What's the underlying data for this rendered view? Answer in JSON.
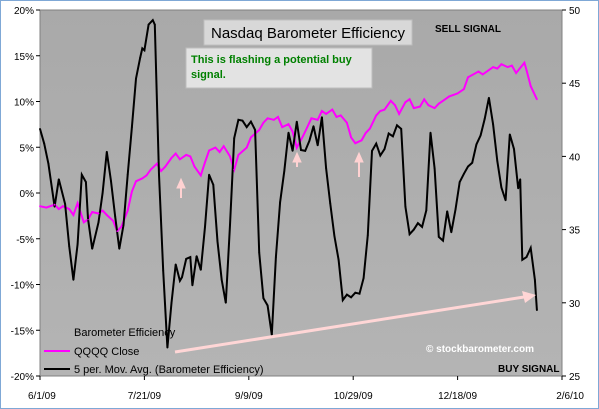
{
  "chart_data": {
    "type": "line",
    "title": "Nasdaq Barometer Efficiency",
    "annotations": {
      "note": "This is flashing a potential buy signal.",
      "sell_signal": "SELL SIGNAL",
      "buy_signal": "BUY SIGNAL",
      "watermark": "© stockbarometer.com"
    },
    "x_tick_labels": [
      "6/1/09",
      "7/21/09",
      "9/9/09",
      "10/29/09",
      "12/18/09",
      "2/6/10"
    ],
    "x_range": [
      "2009-06-01",
      "2010-02-06"
    ],
    "left_axis": {
      "ylim": [
        -20,
        20
      ],
      "ticks": [
        "20%",
        "15%",
        "10%",
        "5%",
        "0%",
        "-5%",
        "-10%",
        "-15%",
        "-20%"
      ]
    },
    "right_axis": {
      "ylim": [
        25,
        50
      ],
      "ticks": [
        "50",
        "45",
        "40",
        "35",
        "30",
        "25"
      ]
    },
    "grid": false,
    "legend_position": "bottom-left",
    "series": [
      {
        "name": "Barometer Efficiency",
        "axis": "left",
        "color": "#000000",
        "style": "none",
        "points": []
      },
      {
        "name": "QQQQ Close",
        "axis": "right",
        "color": "#ff00ff",
        "style": "solid",
        "points": [
          [
            "2009-06-01",
            36.6
          ],
          [
            "2009-06-04",
            36.5
          ],
          [
            "2009-06-08",
            36.7
          ],
          [
            "2009-06-10",
            36.4
          ],
          [
            "2009-06-12",
            36.6
          ],
          [
            "2009-06-15",
            36.4
          ],
          [
            "2009-06-17",
            36.0
          ],
          [
            "2009-06-19",
            36.8
          ],
          [
            "2009-06-22",
            35.5
          ],
          [
            "2009-06-24",
            35.7
          ],
          [
            "2009-06-26",
            36.2
          ],
          [
            "2009-06-29",
            36.1
          ],
          [
            "2009-07-01",
            36.3
          ],
          [
            "2009-07-03",
            36.0
          ],
          [
            "2009-07-06",
            35.6
          ],
          [
            "2009-07-08",
            34.9
          ],
          [
            "2009-07-10",
            35.2
          ],
          [
            "2009-07-13",
            36.3
          ],
          [
            "2009-07-15",
            37.6
          ],
          [
            "2009-07-17",
            38.3
          ],
          [
            "2009-07-20",
            38.5
          ],
          [
            "2009-07-22",
            38.7
          ],
          [
            "2009-07-24",
            39.1
          ],
          [
            "2009-07-27",
            39.5
          ],
          [
            "2009-07-29",
            39.0
          ],
          [
            "2009-07-31",
            39.3
          ],
          [
            "2009-08-03",
            39.9
          ],
          [
            "2009-08-05",
            40.2
          ],
          [
            "2009-08-07",
            39.8
          ],
          [
            "2009-08-10",
            40.1
          ],
          [
            "2009-08-12",
            40.0
          ],
          [
            "2009-08-14",
            39.3
          ],
          [
            "2009-08-17",
            38.7
          ],
          [
            "2009-08-19",
            39.6
          ],
          [
            "2009-08-21",
            40.4
          ],
          [
            "2009-08-24",
            40.6
          ],
          [
            "2009-08-26",
            40.3
          ],
          [
            "2009-08-28",
            40.7
          ],
          [
            "2009-08-31",
            40.0
          ],
          [
            "2009-09-02",
            39.1
          ],
          [
            "2009-09-04",
            40.1
          ],
          [
            "2009-09-08",
            40.6
          ],
          [
            "2009-09-10",
            41.3
          ],
          [
            "2009-09-14",
            41.8
          ],
          [
            "2009-09-16",
            42.3
          ],
          [
            "2009-09-18",
            42.6
          ],
          [
            "2009-09-21",
            42.5
          ],
          [
            "2009-09-23",
            42.7
          ],
          [
            "2009-09-25",
            42.0
          ],
          [
            "2009-09-28",
            42.2
          ],
          [
            "2009-09-30",
            41.7
          ],
          [
            "2009-10-02",
            40.6
          ],
          [
            "2009-10-05",
            41.4
          ],
          [
            "2009-10-07",
            42.0
          ],
          [
            "2009-10-09",
            42.6
          ],
          [
            "2009-10-12",
            42.5
          ],
          [
            "2009-10-14",
            43.1
          ],
          [
            "2009-10-16",
            42.9
          ],
          [
            "2009-10-19",
            43.2
          ],
          [
            "2009-10-21",
            42.7
          ],
          [
            "2009-10-23",
            42.8
          ],
          [
            "2009-10-26",
            42.3
          ],
          [
            "2009-10-28",
            41.3
          ],
          [
            "2009-10-30",
            40.9
          ],
          [
            "2009-11-02",
            41.1
          ],
          [
            "2009-11-04",
            41.6
          ],
          [
            "2009-11-06",
            41.9
          ],
          [
            "2009-11-09",
            42.8
          ],
          [
            "2009-11-11",
            43.1
          ],
          [
            "2009-11-13",
            43.2
          ],
          [
            "2009-11-16",
            43.8
          ],
          [
            "2009-11-18",
            43.5
          ],
          [
            "2009-11-20",
            42.9
          ],
          [
            "2009-11-23",
            43.7
          ],
          [
            "2009-11-25",
            43.9
          ],
          [
            "2009-11-27",
            43.3
          ],
          [
            "2009-11-30",
            43.4
          ],
          [
            "2009-12-02",
            43.9
          ],
          [
            "2009-12-04",
            43.5
          ],
          [
            "2009-12-07",
            43.3
          ],
          [
            "2009-12-09",
            43.6
          ],
          [
            "2009-12-11",
            43.8
          ],
          [
            "2009-12-14",
            44.1
          ],
          [
            "2009-12-16",
            44.2
          ],
          [
            "2009-12-18",
            44.3
          ],
          [
            "2009-12-21",
            44.6
          ],
          [
            "2009-12-23",
            45.4
          ],
          [
            "2009-12-28",
            45.8
          ],
          [
            "2009-12-30",
            45.6
          ],
          [
            "2010-01-04",
            46.1
          ],
          [
            "2010-01-06",
            46.0
          ],
          [
            "2010-01-08",
            46.3
          ],
          [
            "2010-01-11",
            46.1
          ],
          [
            "2010-01-13",
            46.2
          ],
          [
            "2010-01-15",
            45.7
          ],
          [
            "2010-01-19",
            46.4
          ],
          [
            "2010-01-20",
            45.9
          ],
          [
            "2010-01-22",
            44.8
          ],
          [
            "2010-01-25",
            43.9
          ]
        ]
      },
      {
        "name": "5 per. Mov. Avg. (Barometer Efficiency)",
        "axis": "left",
        "color": "#000000",
        "style": "solid",
        "points": [
          [
            "2009-06-01",
            7.0
          ],
          [
            "2009-06-03",
            5.4
          ],
          [
            "2009-06-05",
            3.2
          ],
          [
            "2009-06-08",
            -1.5
          ],
          [
            "2009-06-10",
            1.5
          ],
          [
            "2009-06-11",
            0.6
          ],
          [
            "2009-06-13",
            -1.2
          ],
          [
            "2009-06-15",
            -5.8
          ],
          [
            "2009-06-17",
            -9.5
          ],
          [
            "2009-06-19",
            -5.6
          ],
          [
            "2009-06-21",
            2.0
          ],
          [
            "2009-06-23",
            1.2
          ],
          [
            "2009-06-24",
            -2.8
          ],
          [
            "2009-06-26",
            -6.1
          ],
          [
            "2009-06-29",
            -3.2
          ],
          [
            "2009-07-01",
            0.0
          ],
          [
            "2009-07-03",
            4.5
          ],
          [
            "2009-07-05",
            1.3
          ],
          [
            "2009-07-07",
            -2.6
          ],
          [
            "2009-07-09",
            -6.1
          ],
          [
            "2009-07-11",
            -3.5
          ],
          [
            "2009-07-13",
            2.0
          ],
          [
            "2009-07-15",
            7.2
          ],
          [
            "2009-07-17",
            12.5
          ],
          [
            "2009-07-19",
            14.8
          ],
          [
            "2009-07-20",
            15.8
          ],
          [
            "2009-07-21",
            15.6
          ],
          [
            "2009-07-23",
            18.4
          ],
          [
            "2009-07-25",
            18.9
          ],
          [
            "2009-07-26",
            18.4
          ],
          [
            "2009-07-28",
            2.0
          ],
          [
            "2009-07-30",
            -8.5
          ],
          [
            "2009-08-01",
            -16.9
          ],
          [
            "2009-08-03",
            -12.0
          ],
          [
            "2009-08-05",
            -7.8
          ],
          [
            "2009-08-07",
            -9.6
          ],
          [
            "2009-08-08",
            -9.2
          ],
          [
            "2009-08-10",
            -7.2
          ],
          [
            "2009-08-12",
            -7.0
          ],
          [
            "2009-08-13",
            -10.1
          ],
          [
            "2009-08-15",
            -6.9
          ],
          [
            "2009-08-17",
            -8.4
          ],
          [
            "2009-08-19",
            -3.7
          ],
          [
            "2009-08-21",
            2.0
          ],
          [
            "2009-08-23",
            0.9
          ],
          [
            "2009-08-25",
            -5.3
          ],
          [
            "2009-08-27",
            -9.5
          ],
          [
            "2009-08-29",
            -12.0
          ],
          [
            "2009-08-31",
            -3.5
          ],
          [
            "2009-09-02",
            6.0
          ],
          [
            "2009-09-04",
            8.0
          ],
          [
            "2009-09-06",
            7.9
          ],
          [
            "2009-09-08",
            7.2
          ],
          [
            "2009-09-10",
            7.8
          ],
          [
            "2009-09-12",
            6.9
          ],
          [
            "2009-09-14",
            -6.5
          ],
          [
            "2009-09-16",
            -11.5
          ],
          [
            "2009-09-18",
            -12.3
          ],
          [
            "2009-09-20",
            -15.5
          ],
          [
            "2009-09-22",
            -7.0
          ],
          [
            "2009-09-24",
            -1.0
          ],
          [
            "2009-09-26",
            2.4
          ],
          [
            "2009-09-28",
            6.6
          ],
          [
            "2009-09-30",
            4.6
          ],
          [
            "2009-10-02",
            7.8
          ],
          [
            "2009-10-04",
            4.7
          ],
          [
            "2009-10-06",
            4.6
          ],
          [
            "2009-10-08",
            5.7
          ],
          [
            "2009-10-10",
            7.3
          ],
          [
            "2009-10-12",
            5.2
          ],
          [
            "2009-10-14",
            8.3
          ],
          [
            "2009-10-16",
            2.7
          ],
          [
            "2009-10-18",
            -1.1
          ],
          [
            "2009-10-20",
            -4.7
          ],
          [
            "2009-10-22",
            -7.3
          ],
          [
            "2009-10-24",
            -11.7
          ],
          [
            "2009-10-26",
            -11.1
          ],
          [
            "2009-10-28",
            -11.4
          ],
          [
            "2009-10-30",
            -10.9
          ],
          [
            "2009-11-01",
            -11.0
          ],
          [
            "2009-11-03",
            -9.3
          ],
          [
            "2009-11-05",
            -4.6
          ],
          [
            "2009-11-07",
            4.6
          ],
          [
            "2009-11-09",
            5.4
          ],
          [
            "2009-11-11",
            4.1
          ],
          [
            "2009-11-13",
            4.8
          ],
          [
            "2009-11-15",
            6.5
          ],
          [
            "2009-11-17",
            6.2
          ],
          [
            "2009-11-19",
            7.4
          ],
          [
            "2009-11-21",
            7.0
          ],
          [
            "2009-11-23",
            -1.5
          ],
          [
            "2009-11-25",
            -4.5
          ],
          [
            "2009-11-27",
            -4.0
          ],
          [
            "2009-11-29",
            -3.3
          ],
          [
            "2009-12-01",
            -3.7
          ],
          [
            "2009-12-03",
            -1.9
          ],
          [
            "2009-12-05",
            6.6
          ],
          [
            "2009-12-07",
            2.7
          ],
          [
            "2009-12-09",
            -4.8
          ],
          [
            "2009-12-11",
            -5.2
          ],
          [
            "2009-12-13",
            -2.0
          ],
          [
            "2009-12-15",
            -4.3
          ],
          [
            "2009-12-17",
            -1.8
          ],
          [
            "2009-12-19",
            1.2
          ],
          [
            "2009-12-21",
            2.1
          ],
          [
            "2009-12-23",
            2.9
          ],
          [
            "2009-12-25",
            3.3
          ],
          [
            "2009-12-27",
            5.3
          ],
          [
            "2009-12-29",
            6.3
          ],
          [
            "2009-12-31",
            8.1
          ],
          [
            "2010-01-02",
            10.4
          ],
          [
            "2010-01-04",
            7.5
          ],
          [
            "2010-01-06",
            3.5
          ],
          [
            "2010-01-08",
            0.6
          ],
          [
            "2010-01-10",
            -0.8
          ],
          [
            "2010-01-12",
            6.4
          ],
          [
            "2010-01-14",
            4.8
          ],
          [
            "2010-01-16",
            0.5
          ],
          [
            "2010-01-17",
            1.5
          ],
          [
            "2010-01-18",
            -7.3
          ],
          [
            "2010-01-20",
            -7.0
          ],
          [
            "2010-01-22",
            -6.0
          ],
          [
            "2010-01-24",
            -9.5
          ],
          [
            "2010-01-25",
            -12.8
          ]
        ]
      }
    ]
  }
}
